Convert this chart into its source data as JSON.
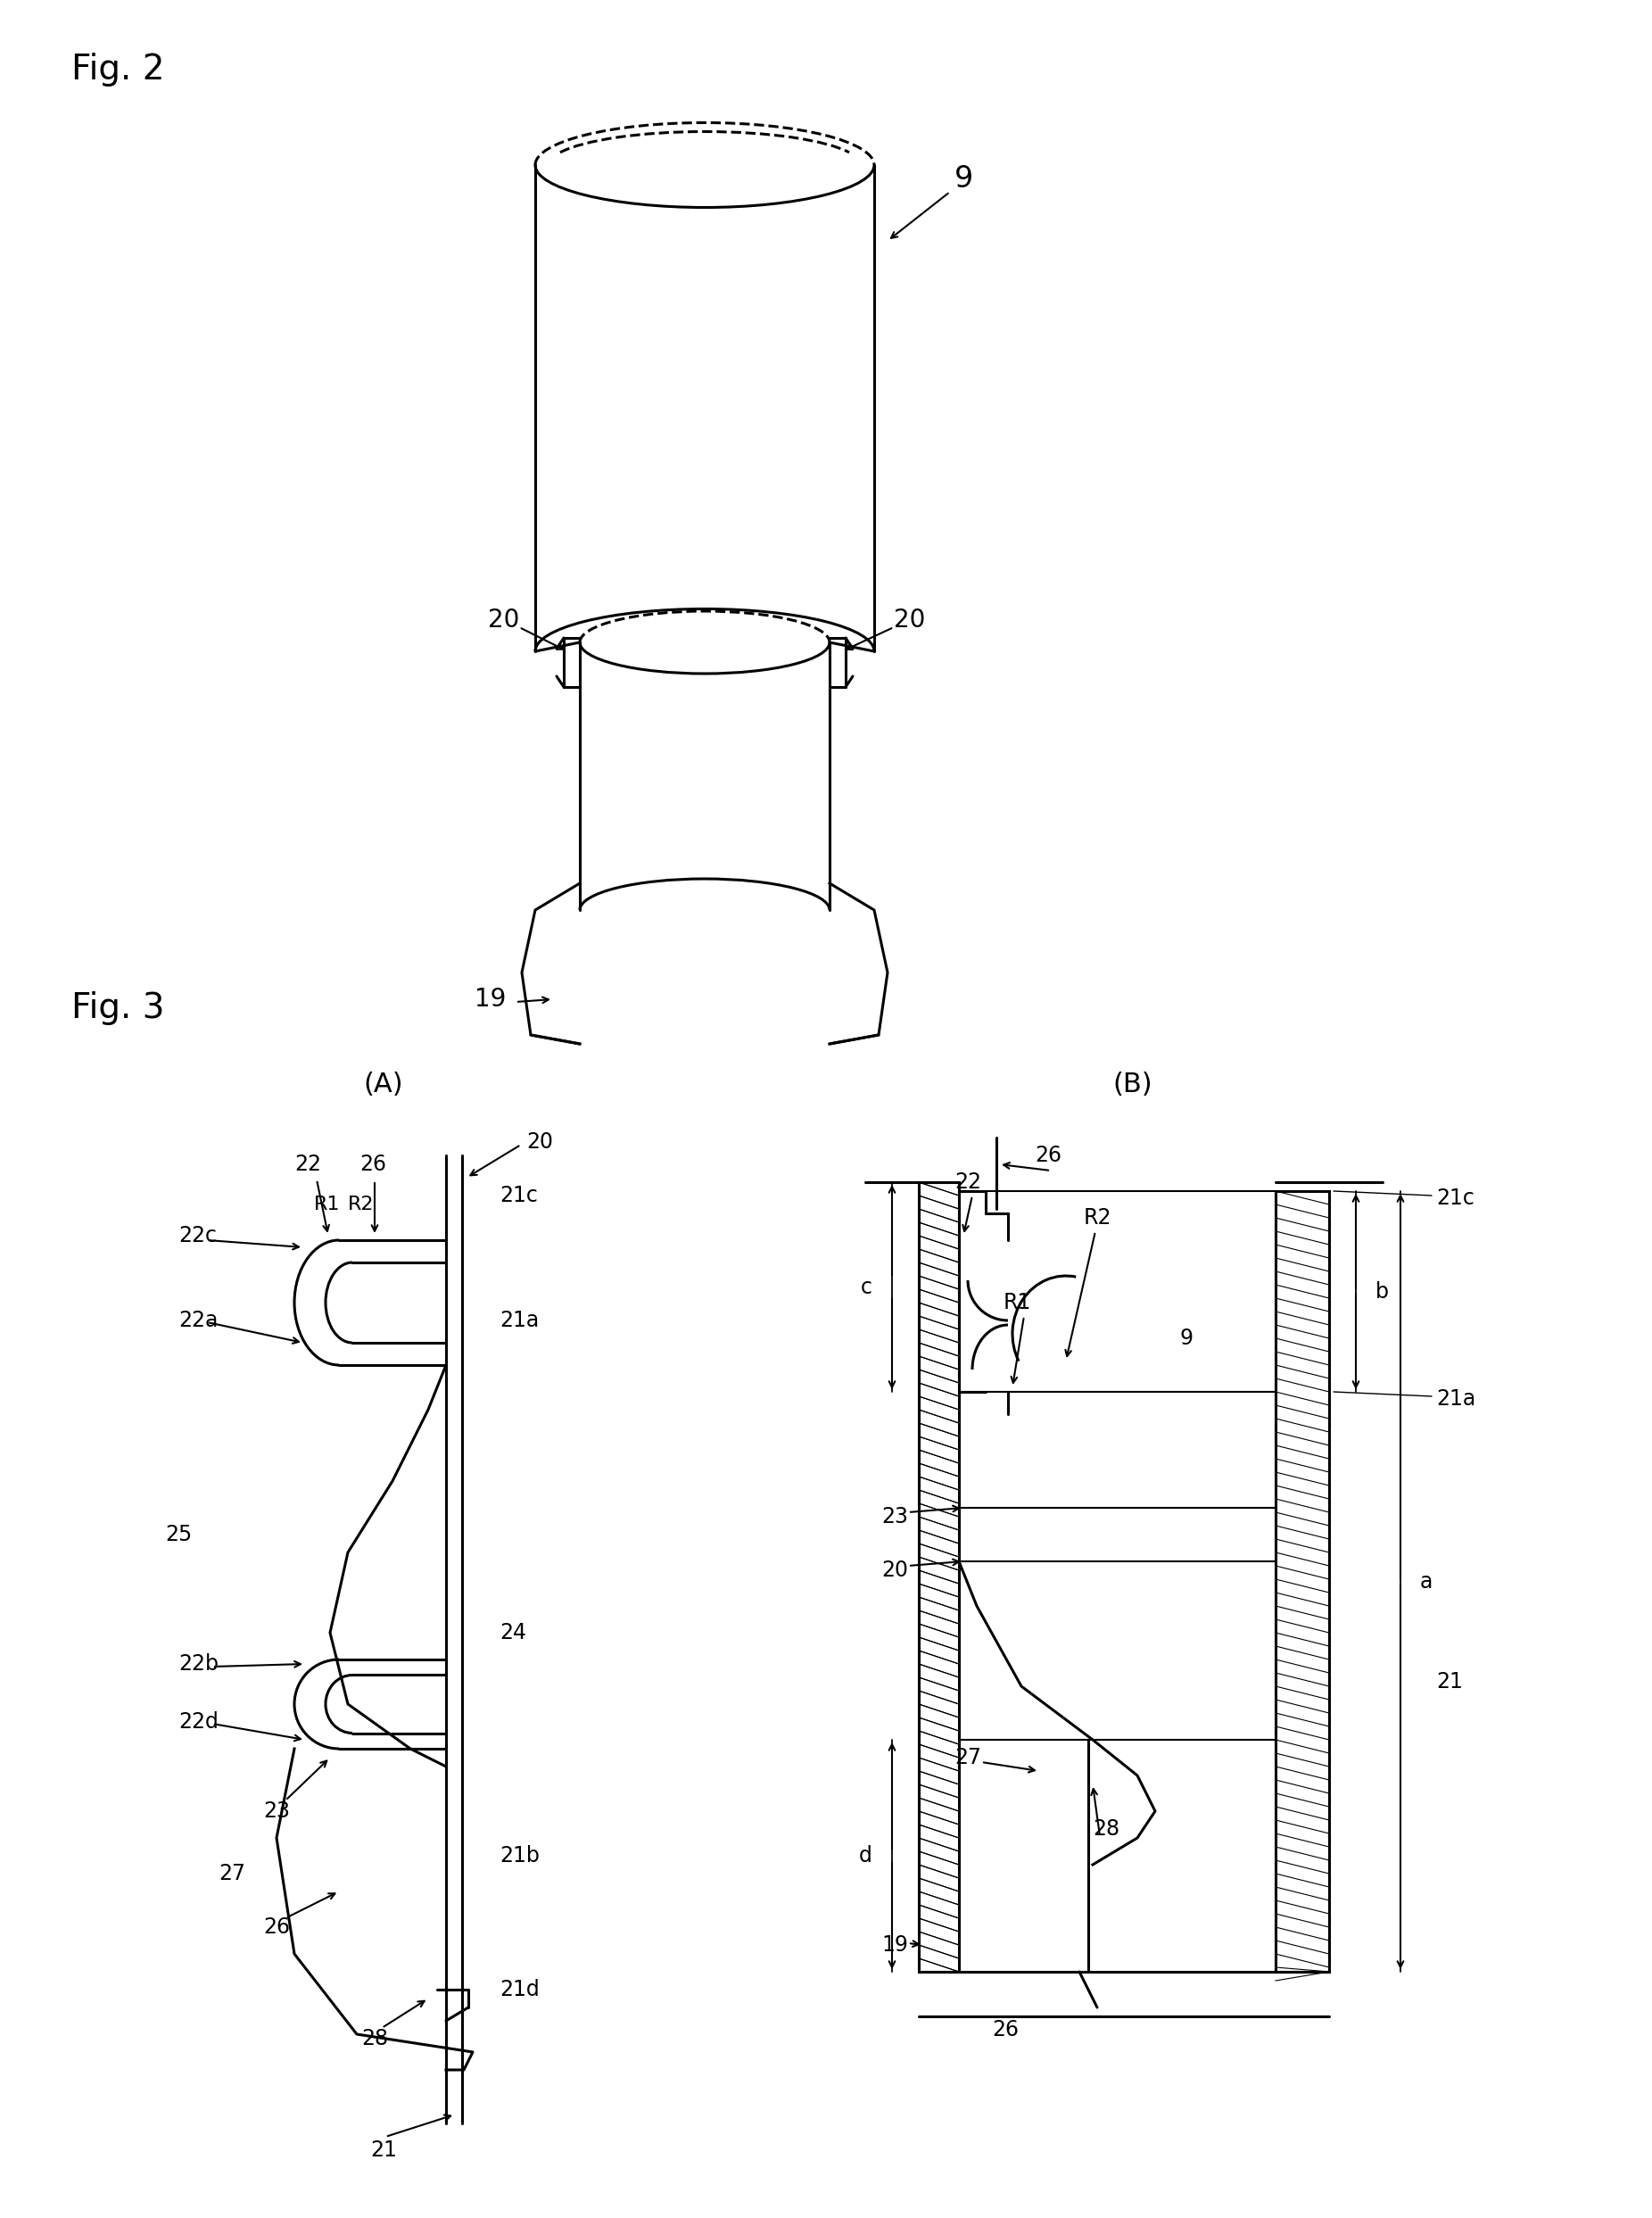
{
  "bg_color": "#ffffff",
  "fig2_title": "Fig. 2",
  "fig3_title": "Fig. 3",
  "label_9": "9",
  "label_19": "19",
  "label_20": "20",
  "label_21": "21",
  "label_21a": "21a",
  "label_21b": "21b",
  "label_21c": "21c",
  "label_21d": "21d",
  "label_22": "22",
  "label_22a": "22a",
  "label_22b": "22b",
  "label_22c": "22c",
  "label_22d": "22d",
  "label_23": "23",
  "label_24": "24",
  "label_25": "25",
  "label_26": "26",
  "label_27": "27",
  "label_28": "28",
  "label_R1": "R1",
  "label_R2": "R2",
  "label_A": "(A)",
  "label_B": "(B)",
  "label_a": "a",
  "label_b": "b",
  "label_c": "c",
  "label_d": "d"
}
